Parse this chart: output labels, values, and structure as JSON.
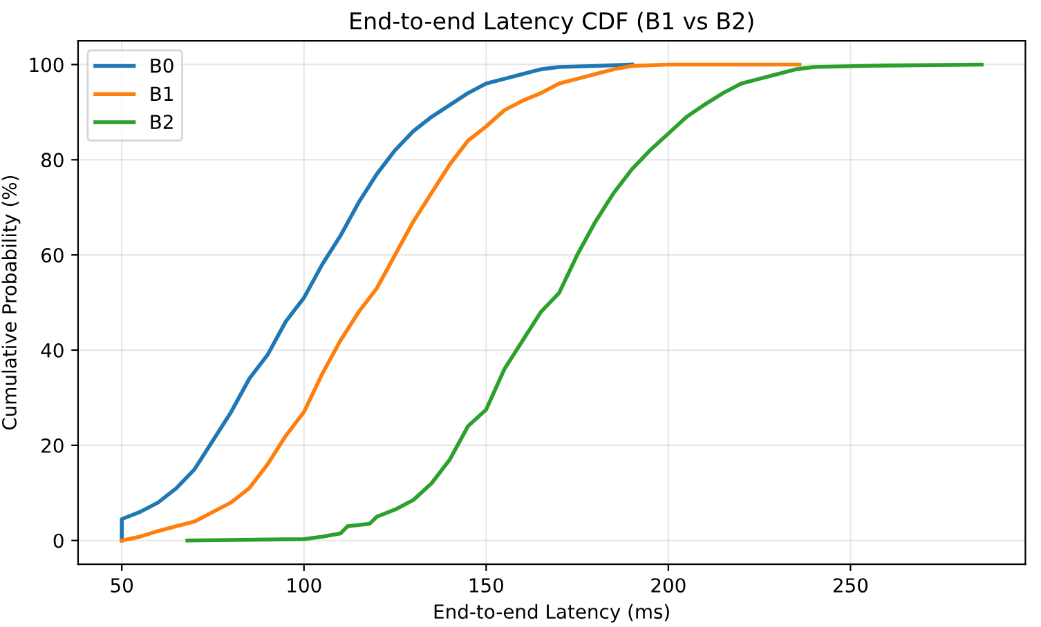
{
  "chart_data": {
    "type": "line",
    "title": "End-to-end Latency CDF (B1 vs B2)",
    "xlabel": "End-to-end Latency (ms)",
    "ylabel": "Cumulative Probability (%)",
    "xlim": [
      38,
      298
    ],
    "xticks": [
      50,
      100,
      150,
      200,
      250
    ],
    "ylim": [
      -5,
      105
    ],
    "yticks": [
      0,
      20,
      40,
      60,
      80,
      100
    ],
    "grid": true,
    "legend": "top left",
    "marker": "none",
    "line_style": "solid",
    "series": [
      {
        "name": "B0",
        "color": "#1f77b4",
        "x": [
          50,
          50,
          55,
          60,
          65,
          70,
          75,
          80,
          85,
          90,
          95,
          100,
          105,
          110,
          115,
          120,
          125,
          130,
          135,
          140,
          145,
          150,
          155,
          160,
          165,
          170,
          180,
          190
        ],
        "values": [
          0,
          4.5,
          6,
          8,
          11,
          15,
          21,
          27,
          34,
          39,
          46,
          51,
          58,
          64,
          71,
          77,
          82,
          86,
          89,
          91.5,
          94,
          96,
          97,
          98,
          99,
          99.5,
          99.7,
          100
        ]
      },
      {
        "name": "B1",
        "color": "#ff7f0e",
        "x": [
          50,
          55,
          60,
          65,
          70,
          75,
          80,
          85,
          90,
          95,
          100,
          105,
          110,
          115,
          120,
          125,
          130,
          135,
          140,
          145,
          150,
          155,
          160,
          165,
          170,
          175,
          180,
          185,
          190,
          200,
          236
        ],
        "values": [
          0,
          0.8,
          2,
          3,
          4,
          6,
          8,
          11,
          16,
          22,
          27,
          35,
          42,
          48,
          53,
          60,
          67,
          73,
          79,
          84,
          87,
          90.4,
          92.4,
          94,
          96,
          97,
          98,
          99,
          99.7,
          100,
          100
        ]
      },
      {
        "name": "B2",
        "color": "#2ca02c",
        "x": [
          68,
          80,
          90,
          100,
          105,
          110,
          112,
          118,
          120,
          125,
          130,
          135,
          140,
          145,
          150,
          155,
          160,
          165,
          170,
          175,
          180,
          185,
          190,
          195,
          200,
          205,
          210,
          215,
          220,
          225,
          230,
          235,
          240,
          260,
          286
        ],
        "values": [
          0,
          0.1,
          0.2,
          0.3,
          0.8,
          1.5,
          3,
          3.5,
          5,
          6.5,
          8.5,
          12,
          17,
          24,
          27.5,
          36,
          42,
          48,
          52,
          60,
          67,
          73,
          78,
          82,
          85.5,
          89,
          91.6,
          94,
          96,
          97,
          98,
          99,
          99.5,
          99.8,
          100
        ]
      }
    ]
  }
}
